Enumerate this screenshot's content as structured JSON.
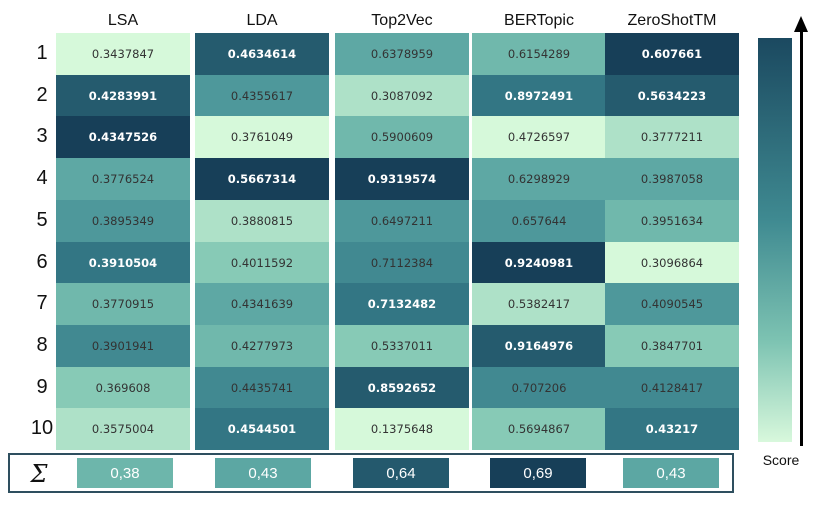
{
  "chart_data": {
    "type": "heatmap",
    "columns": [
      "LSA",
      "LDA",
      "Top2Vec",
      "BERTopic",
      "ZeroShotTM"
    ],
    "rows": [
      "1",
      "2",
      "3",
      "4",
      "5",
      "6",
      "7",
      "8",
      "9",
      "10"
    ],
    "cells": [
      [
        "0.3437847",
        "0.4634614",
        "0.6378959",
        "0.6154289",
        "0.607661"
      ],
      [
        "0.4283991",
        "0.4355617",
        "0.3087092",
        "0.8972491",
        "0.5634223"
      ],
      [
        "0.4347526",
        "0.3761049",
        "0.5900609",
        "0.4726597",
        "0.3777211"
      ],
      [
        "0.3776524",
        "0.5667314",
        "0.9319574",
        "0.6298929",
        "0.3987058"
      ],
      [
        "0.3895349",
        "0.3880815",
        "0.6497211",
        "0.657644",
        "0.3951634"
      ],
      [
        "0.3910504",
        "0.4011592",
        "0.7112384",
        "0.9240981",
        "0.3096864"
      ],
      [
        "0.3770915",
        "0.4341639",
        "0.7132482",
        "0.5382417",
        "0.4090545"
      ],
      [
        "0.3901941",
        "0.4277973",
        "0.5337011",
        "0.9164976",
        "0.3847701"
      ],
      [
        "0.369608",
        "0.4435741",
        "0.8592652",
        "0.707206",
        "0.4128417"
      ],
      [
        "0.3575004",
        "0.4544501",
        "0.1375648",
        "0.5694867",
        "0.43217"
      ]
    ],
    "sum_label": "Σ",
    "sums": [
      "0,38",
      "0,43",
      "0,64",
      "0,69",
      "0,43"
    ],
    "sum_values": [
      0.38,
      0.43,
      0.64,
      0.69,
      0.43
    ],
    "colorbar_label": "Score",
    "colors": {
      "dark": "#173f58",
      "mid": "#468f94",
      "light": "#d9fadf"
    }
  }
}
